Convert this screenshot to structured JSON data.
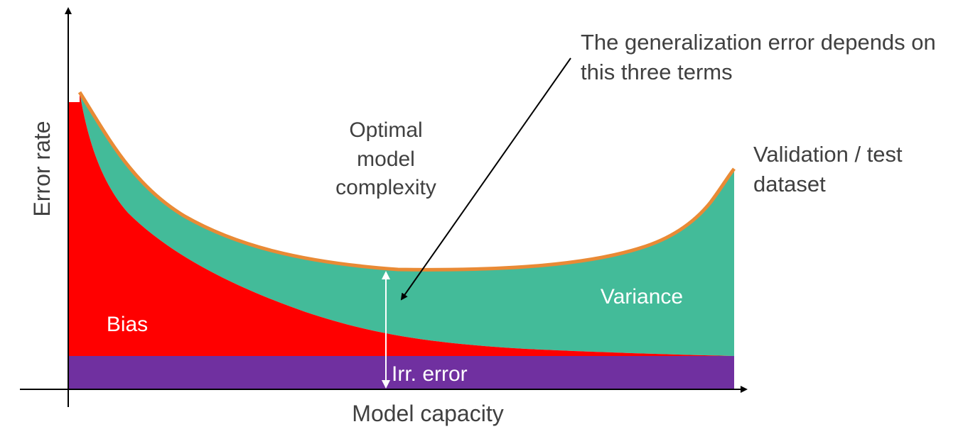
{
  "axes": {
    "x_label": "Model capacity",
    "y_label": "Error rate"
  },
  "regions": {
    "bias": {
      "label": "Bias",
      "color": "#ff0000"
    },
    "variance": {
      "label": "Variance",
      "color": "#43bb99"
    },
    "irreducible_error": {
      "label": "Irr. error",
      "color": "#7030a0"
    }
  },
  "curve": {
    "label_line1": "Validation / test",
    "label_line2": "dataset",
    "color": "#e98a35"
  },
  "annotations": {
    "optimal_line1": "Optimal",
    "optimal_line2": "model",
    "optimal_line3": "complexity",
    "generalization_line1": "The generalization error depends on",
    "generalization_line2": "this three terms"
  },
  "colors": {
    "axis": "#000000",
    "label_text": "#404040",
    "inner_text": "#ffffff"
  }
}
